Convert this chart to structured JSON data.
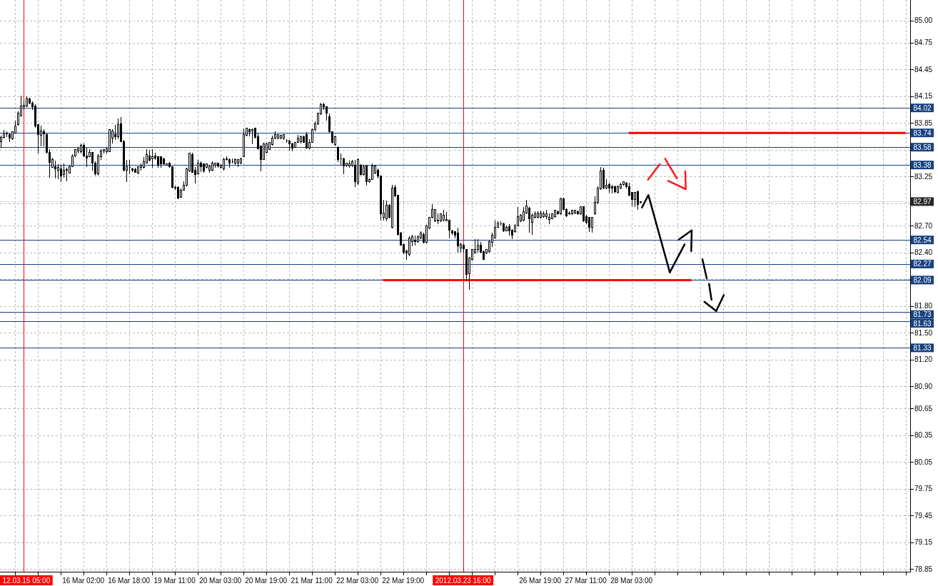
{
  "chart_data": {
    "type": "candlestick",
    "color": "#000000",
    "categories": [
      null,
      null,
      null,
      null,
      null,
      null,
      null,
      null,
      "12.03.15 05:00",
      null,
      null,
      null,
      null,
      null,
      null,
      null,
      null,
      null,
      null,
      null,
      null,
      null,
      null,
      null,
      null,
      null,
      null,
      null,
      null,
      "16 Mar 02:00",
      null,
      null,
      null,
      null,
      null,
      null,
      null,
      null,
      null,
      null,
      null,
      null,
      null,
      null,
      null,
      "16 Mar 18:00",
      null,
      null,
      null,
      null,
      null,
      null,
      null,
      null,
      null,
      null,
      null,
      null,
      null,
      null,
      null,
      "19 Mar 11:00",
      null,
      null,
      null,
      null,
      null,
      null,
      null,
      null,
      null,
      null,
      null,
      null,
      null,
      null,
      null,
      "20 Mar 03:00",
      null,
      null,
      null,
      null,
      null,
      null,
      null,
      null,
      null,
      null,
      null,
      null,
      null,
      null,
      null,
      "20 Mar 19:00",
      null,
      null,
      null,
      null,
      null,
      null,
      null,
      null,
      null,
      null,
      null,
      null,
      null,
      null,
      null,
      "21 Mar 11:00",
      null,
      null,
      null,
      null,
      null,
      null,
      null,
      null,
      null,
      null,
      null,
      null,
      null,
      null,
      null,
      "22 Mar 03:00",
      null,
      null,
      null,
      null,
      null,
      null,
      null,
      null,
      null,
      null,
      null,
      null,
      null,
      null,
      null,
      "22 Mar 19:00",
      null,
      null,
      null,
      null,
      null,
      null,
      null,
      null,
      null,
      null,
      null,
      null,
      null,
      null,
      null,
      null,
      null,
      null,
      null,
      null,
      "2012.03.23 16:00",
      null,
      null,
      null,
      null,
      null,
      null,
      null,
      null,
      null,
      null,
      null,
      null,
      null,
      null,
      null,
      null,
      null,
      null,
      null,
      null,
      null,
      null,
      null,
      null,
      null,
      null,
      "26 Mar 19:00",
      null,
      null,
      null,
      null,
      null,
      null,
      null,
      null,
      null,
      null,
      null,
      null,
      null,
      null,
      null,
      "27 Mar 11:00",
      null,
      null,
      null,
      null,
      null,
      null,
      null,
      null,
      null,
      null,
      null,
      null,
      null,
      null,
      null,
      "28 Mar 03:00",
      null,
      null,
      null,
      null,
      null,
      null,
      null,
      null,
      null,
      null,
      null,
      null,
      null,
      null,
      null,
      null,
      null,
      null,
      null,
      null,
      null,
      null,
      null,
      null,
      null,
      null,
      null,
      null,
      null,
      null,
      null,
      null,
      null,
      null,
      null,
      null,
      null,
      null,
      null,
      null,
      null,
      null,
      null,
      null,
      null,
      null,
      null,
      null,
      null,
      null,
      null,
      null,
      null,
      null,
      null,
      null,
      null,
      null,
      null,
      null,
      null,
      null,
      null,
      null,
      null,
      null,
      null,
      null,
      null,
      null,
      null,
      null,
      null,
      null,
      null,
      null,
      null,
      null,
      null,
      null,
      null,
      null,
      null,
      null,
      null,
      null,
      null,
      null,
      null,
      null,
      null,
      null,
      null,
      null,
      null,
      null,
      null
    ],
    "ohlc": [
      [
        83.64,
        83.71,
        83.57,
        83.69
      ],
      [
        83.69,
        83.77,
        83.68,
        83.74
      ],
      [
        83.74,
        83.76,
        83.69,
        83.73
      ],
      [
        83.72,
        83.73,
        83.64,
        83.68
      ],
      [
        83.67,
        83.76,
        83.66,
        83.75
      ],
      [
        83.74,
        83.88,
        83.73,
        83.82
      ],
      [
        83.83,
        83.98,
        83.82,
        83.96
      ],
      [
        83.93,
        84.16,
        83.93,
        84.04
      ],
      [
        84.03,
        84.1,
        84.0,
        84.05
      ],
      [
        84.04,
        84.15,
        84.03,
        84.12
      ],
      [
        84.12,
        84.13,
        84.06,
        84.07
      ],
      [
        84.07,
        84.09,
        84.0,
        84.03
      ],
      [
        84.04,
        84.06,
        83.8,
        83.82
      ],
      [
        83.83,
        83.84,
        83.51,
        83.72
      ],
      [
        83.71,
        83.82,
        83.59,
        83.76
      ],
      [
        83.75,
        83.78,
        83.59,
        83.73
      ],
      [
        83.72,
        83.74,
        83.51,
        83.52
      ],
      [
        83.52,
        83.56,
        83.24,
        83.41
      ],
      [
        83.35,
        83.46,
        83.35,
        83.44
      ],
      [
        83.36,
        83.43,
        83.23,
        83.34
      ],
      [
        83.32,
        83.39,
        83.22,
        83.35
      ],
      [
        83.34,
        83.38,
        83.19,
        83.26
      ],
      [
        83.27,
        83.4,
        83.24,
        83.32
      ],
      [
        83.32,
        83.35,
        83.2,
        83.33
      ],
      [
        83.29,
        83.38,
        83.29,
        83.36
      ],
      [
        83.36,
        83.5,
        83.36,
        83.48
      ],
      [
        83.48,
        83.56,
        83.47,
        83.55
      ],
      [
        83.54,
        83.58,
        83.51,
        83.56
      ],
      [
        83.53,
        83.62,
        83.51,
        83.6
      ],
      [
        83.6,
        83.62,
        83.47,
        83.48
      ],
      [
        83.48,
        83.57,
        83.36,
        83.46
      ],
      [
        83.47,
        83.56,
        83.47,
        83.52
      ],
      [
        83.52,
        83.52,
        83.32,
        83.4
      ],
      [
        83.4,
        83.42,
        83.26,
        83.28
      ],
      [
        83.28,
        83.5,
        83.26,
        83.48
      ],
      [
        83.47,
        83.56,
        83.44,
        83.54
      ],
      [
        83.54,
        83.56,
        83.51,
        83.55
      ],
      [
        83.53,
        83.57,
        83.51,
        83.56
      ],
      [
        83.53,
        83.78,
        83.53,
        83.78
      ],
      [
        83.68,
        83.78,
        83.62,
        83.76
      ],
      [
        83.72,
        83.83,
        83.66,
        83.7
      ],
      [
        83.7,
        83.9,
        83.67,
        83.83
      ],
      [
        83.84,
        83.92,
        83.64,
        83.64
      ],
      [
        83.64,
        83.66,
        83.31,
        83.32
      ],
      [
        83.32,
        83.44,
        83.19,
        83.36
      ],
      [
        83.35,
        83.44,
        83.28,
        83.35
      ],
      [
        83.34,
        83.35,
        83.3,
        83.32
      ],
      [
        83.33,
        83.35,
        83.29,
        83.3
      ],
      [
        83.29,
        83.36,
        83.28,
        83.36
      ],
      [
        83.35,
        83.4,
        83.32,
        83.38
      ],
      [
        83.35,
        83.47,
        83.34,
        83.42
      ],
      [
        83.4,
        83.56,
        83.4,
        83.5
      ],
      [
        83.48,
        83.55,
        83.42,
        83.43
      ],
      [
        83.45,
        83.56,
        83.35,
        83.47
      ],
      [
        83.48,
        83.52,
        83.44,
        83.46
      ],
      [
        83.47,
        83.48,
        83.35,
        83.38
      ],
      [
        83.47,
        83.48,
        83.35,
        83.39
      ],
      [
        83.45,
        83.46,
        83.38,
        83.39
      ],
      [
        83.38,
        83.4,
        83.37,
        83.39
      ],
      [
        83.4,
        83.41,
        83.35,
        83.36
      ],
      [
        83.36,
        83.36,
        83.12,
        83.13
      ],
      [
        83.13,
        83.15,
        83.1,
        83.12
      ],
      [
        83.13,
        83.14,
        83.0,
        83.01
      ],
      [
        83.02,
        83.12,
        83.02,
        83.1
      ],
      [
        83.1,
        83.2,
        83.1,
        83.15
      ],
      [
        83.15,
        83.35,
        83.14,
        83.34
      ],
      [
        83.31,
        83.52,
        83.3,
        83.51
      ],
      [
        83.5,
        83.52,
        83.3,
        83.3
      ],
      [
        83.32,
        83.36,
        83.17,
        83.27
      ],
      [
        83.28,
        83.44,
        83.27,
        83.4
      ],
      [
        83.4,
        83.42,
        83.3,
        83.36
      ],
      [
        83.39,
        83.4,
        83.29,
        83.31
      ],
      [
        83.35,
        83.4,
        83.34,
        83.39
      ],
      [
        83.32,
        83.38,
        83.29,
        83.36
      ],
      [
        83.32,
        83.42,
        83.31,
        83.4
      ],
      [
        83.38,
        83.4,
        83.35,
        83.4
      ],
      [
        83.4,
        83.4,
        83.35,
        83.37
      ],
      [
        83.35,
        83.39,
        83.34,
        83.38
      ],
      [
        83.34,
        83.46,
        83.32,
        83.44
      ],
      [
        83.44,
        83.48,
        83.43,
        83.45
      ],
      [
        83.44,
        83.45,
        83.35,
        83.4
      ],
      [
        83.42,
        83.45,
        83.4,
        83.42
      ],
      [
        83.4,
        83.45,
        83.38,
        83.44
      ],
      [
        83.4,
        83.44,
        83.36,
        83.44
      ],
      [
        83.4,
        83.46,
        83.39,
        83.45
      ],
      [
        83.47,
        83.79,
        83.47,
        83.72
      ],
      [
        83.71,
        83.8,
        83.7,
        83.79
      ],
      [
        83.78,
        83.79,
        83.7,
        83.75
      ],
      [
        83.76,
        83.79,
        83.61,
        83.78
      ],
      [
        83.79,
        83.8,
        83.68,
        83.69
      ],
      [
        83.7,
        83.74,
        83.56,
        83.56
      ],
      [
        83.59,
        83.6,
        83.31,
        83.44
      ],
      [
        83.44,
        83.63,
        83.44,
        83.62
      ],
      [
        83.52,
        83.63,
        83.51,
        83.62
      ],
      [
        83.55,
        83.64,
        83.55,
        83.63
      ],
      [
        83.61,
        83.71,
        83.6,
        83.68
      ],
      [
        83.68,
        83.76,
        83.67,
        83.72
      ],
      [
        83.68,
        83.72,
        83.67,
        83.72
      ],
      [
        83.68,
        83.72,
        83.67,
        83.71
      ],
      [
        83.68,
        83.72,
        83.66,
        83.72
      ],
      [
        83.65,
        83.67,
        83.63,
        83.65
      ],
      [
        83.65,
        83.66,
        83.54,
        83.62
      ],
      [
        83.62,
        83.63,
        83.53,
        83.57
      ],
      [
        83.58,
        83.64,
        83.57,
        83.63
      ],
      [
        83.63,
        83.72,
        83.63,
        83.68
      ],
      [
        83.64,
        83.71,
        83.62,
        83.7
      ],
      [
        83.7,
        83.71,
        83.63,
        83.63
      ],
      [
        83.72,
        83.75,
        83.57,
        83.57
      ],
      [
        83.57,
        83.67,
        83.56,
        83.63
      ],
      [
        83.63,
        83.79,
        83.63,
        83.78
      ],
      [
        83.78,
        83.87,
        83.76,
        83.84
      ],
      [
        83.84,
        83.96,
        83.83,
        83.96
      ],
      [
        83.95,
        84.08,
        83.94,
        84.06
      ],
      [
        84.06,
        84.08,
        84.0,
        84.03
      ],
      [
        84.03,
        84.04,
        83.88,
        83.96
      ],
      [
        83.92,
        83.96,
        83.74,
        83.75
      ],
      [
        83.75,
        83.76,
        83.62,
        83.63
      ],
      [
        83.61,
        83.71,
        83.6,
        83.7
      ],
      [
        83.58,
        83.59,
        83.41,
        83.44
      ],
      [
        83.45,
        83.51,
        83.38,
        83.45
      ],
      [
        83.45,
        83.46,
        83.28,
        83.37
      ],
      [
        83.38,
        83.4,
        83.36,
        83.4
      ],
      [
        83.37,
        83.43,
        83.35,
        83.39
      ],
      [
        83.38,
        83.44,
        83.36,
        83.42
      ],
      [
        83.38,
        83.44,
        83.13,
        83.19
      ],
      [
        83.18,
        83.45,
        83.16,
        83.44
      ],
      [
        83.38,
        83.39,
        83.26,
        83.27
      ],
      [
        83.27,
        83.38,
        83.26,
        83.36
      ],
      [
        83.37,
        83.38,
        83.15,
        83.19
      ],
      [
        83.19,
        83.23,
        83.18,
        83.22
      ],
      [
        83.22,
        83.4,
        83.21,
        83.37
      ],
      [
        83.29,
        83.38,
        83.28,
        83.37
      ],
      [
        83.32,
        83.34,
        83.23,
        83.26
      ],
      [
        83.26,
        83.26,
        82.76,
        82.83
      ],
      [
        82.79,
        82.99,
        82.76,
        82.84
      ],
      [
        82.78,
        82.98,
        82.75,
        82.93
      ],
      [
        82.93,
        82.94,
        82.78,
        82.79
      ],
      [
        82.68,
        83.16,
        82.67,
        83.12
      ],
      [
        83.13,
        83.16,
        83.02,
        83.03
      ],
      [
        83.04,
        83.04,
        82.59,
        82.6
      ],
      [
        82.62,
        82.63,
        82.48,
        82.48
      ],
      [
        82.49,
        82.5,
        82.38,
        82.4
      ],
      [
        82.42,
        82.43,
        82.32,
        82.39
      ],
      [
        82.38,
        82.58,
        82.36,
        82.56
      ],
      [
        82.52,
        82.6,
        82.47,
        82.58
      ],
      [
        82.54,
        82.59,
        82.48,
        82.52
      ],
      [
        82.52,
        82.59,
        82.51,
        82.58
      ],
      [
        82.56,
        82.64,
        82.55,
        82.62
      ],
      [
        82.6,
        82.62,
        82.5,
        82.51
      ],
      [
        82.51,
        82.71,
        82.5,
        82.7
      ],
      [
        82.67,
        82.8,
        82.66,
        82.79
      ],
      [
        82.79,
        82.94,
        82.78,
        82.88
      ],
      [
        82.75,
        82.88,
        82.74,
        82.88
      ],
      [
        82.76,
        82.84,
        82.72,
        82.75
      ],
      [
        82.75,
        82.84,
        82.74,
        82.83
      ],
      [
        82.76,
        82.88,
        82.75,
        82.82
      ],
      [
        82.75,
        82.85,
        82.75,
        82.77
      ],
      [
        82.76,
        82.76,
        82.56,
        82.65
      ],
      [
        82.64,
        82.65,
        82.6,
        82.62
      ],
      [
        82.63,
        82.64,
        82.56,
        82.59
      ],
      [
        82.62,
        82.68,
        82.4,
        82.47
      ],
      [
        82.45,
        82.51,
        82.4,
        82.49
      ],
      [
        82.48,
        82.49,
        82.4,
        82.44
      ],
      [
        82.43,
        82.43,
        82.08,
        82.15
      ],
      [
        82.16,
        82.35,
        81.98,
        82.34
      ],
      [
        82.32,
        82.43,
        82.31,
        82.43
      ],
      [
        82.39,
        82.55,
        82.39,
        82.43
      ],
      [
        82.43,
        82.55,
        82.4,
        82.48
      ],
      [
        82.48,
        82.52,
        82.4,
        82.4
      ],
      [
        82.41,
        82.42,
        82.32,
        82.32
      ],
      [
        82.39,
        82.44,
        82.38,
        82.43
      ],
      [
        82.41,
        82.54,
        82.4,
        82.52
      ],
      [
        82.51,
        82.62,
        82.46,
        82.59
      ],
      [
        82.56,
        82.76,
        82.56,
        82.68
      ],
      [
        82.68,
        82.75,
        82.68,
        82.73
      ],
      [
        82.72,
        82.75,
        82.7,
        82.72
      ],
      [
        82.72,
        82.73,
        82.63,
        82.64
      ],
      [
        82.64,
        82.7,
        82.64,
        82.68
      ],
      [
        82.69,
        82.72,
        82.59,
        82.64
      ],
      [
        82.65,
        82.66,
        82.55,
        82.59
      ],
      [
        82.63,
        82.72,
        82.62,
        82.7
      ],
      [
        82.7,
        82.91,
        82.7,
        82.8
      ],
      [
        82.75,
        82.83,
        82.74,
        82.82
      ],
      [
        82.76,
        82.91,
        82.75,
        82.86
      ],
      [
        82.84,
        82.99,
        82.83,
        82.92
      ],
      [
        82.9,
        82.91,
        82.62,
        82.78
      ],
      [
        82.74,
        82.84,
        82.6,
        82.82
      ],
      [
        82.79,
        82.86,
        82.78,
        82.83
      ],
      [
        82.79,
        82.86,
        82.78,
        82.84
      ],
      [
        82.79,
        82.87,
        82.78,
        82.84
      ],
      [
        82.8,
        82.86,
        82.79,
        82.83
      ],
      [
        82.8,
        82.88,
        82.77,
        82.83
      ],
      [
        82.77,
        82.84,
        82.72,
        82.79
      ],
      [
        82.78,
        82.84,
        82.78,
        82.83
      ],
      [
        82.8,
        82.88,
        82.79,
        82.87
      ],
      [
        82.86,
        82.87,
        82.82,
        82.83
      ],
      [
        82.83,
        83.01,
        82.82,
        83.0
      ],
      [
        83.0,
        83.01,
        82.88,
        82.88
      ],
      [
        82.88,
        82.89,
        82.8,
        82.81
      ],
      [
        82.84,
        82.86,
        82.82,
        82.83
      ],
      [
        82.83,
        82.88,
        82.82,
        82.87
      ],
      [
        82.84,
        82.88,
        82.83,
        82.87
      ],
      [
        82.86,
        82.87,
        82.82,
        82.83
      ],
      [
        82.83,
        82.92,
        82.82,
        82.91
      ],
      [
        82.91,
        82.92,
        82.74,
        82.75
      ],
      [
        82.8,
        82.82,
        82.72,
        82.74
      ],
      [
        82.79,
        82.8,
        82.63,
        82.68
      ],
      [
        82.68,
        82.8,
        82.62,
        82.79
      ],
      [
        82.83,
        83.03,
        82.82,
        82.96
      ],
      [
        82.96,
        83.14,
        82.94,
        83.12
      ],
      [
        83.11,
        83.36,
        83.1,
        83.31
      ],
      [
        83.32,
        83.35,
        83.11,
        83.12
      ],
      [
        83.12,
        83.22,
        83.11,
        83.15
      ],
      [
        83.16,
        83.18,
        83.07,
        83.12
      ],
      [
        83.14,
        83.16,
        83.06,
        83.12
      ],
      [
        83.14,
        83.15,
        83.06,
        83.08
      ],
      [
        83.07,
        83.15,
        83.06,
        83.14
      ],
      [
        83.12,
        83.18,
        83.11,
        83.16
      ],
      [
        83.16,
        83.2,
        83.15,
        83.19
      ],
      [
        83.18,
        83.19,
        83.12,
        83.14
      ],
      [
        83.14,
        83.18,
        83.03,
        83.04
      ],
      [
        83.07,
        83.08,
        82.92,
        82.99
      ],
      [
        82.99,
        83.08,
        82.91,
        83.07
      ],
      [
        83.08,
        83.09,
        82.88,
        82.94
      ],
      [
        82.96,
        82.97,
        82.95,
        82.97
      ],
      null,
      null,
      null,
      null,
      null,
      null,
      null,
      null,
      null,
      null,
      null,
      null,
      null,
      null,
      null,
      null,
      null,
      null,
      null,
      null,
      null,
      null,
      null,
      null,
      null,
      null,
      null,
      null,
      null,
      null,
      null,
      null,
      null,
      null,
      null,
      null,
      null,
      null,
      null,
      null,
      null,
      null,
      null,
      null,
      null,
      null,
      null,
      null,
      null,
      null,
      null,
      null,
      null,
      null,
      null,
      null,
      null,
      null,
      null,
      null,
      null,
      null,
      null,
      null,
      null,
      null,
      null,
      null,
      null,
      null,
      null,
      null,
      null,
      null,
      null,
      null,
      null,
      null,
      null,
      null,
      null,
      null,
      null,
      null,
      null,
      null,
      null,
      null,
      null,
      null,
      null,
      null,
      null,
      null
    ],
    "ylim": [
      78.82,
      85.23
    ],
    "yticks": [
      {
        "value": 85,
        "label": "85.00"
      },
      84.75,
      84.45,
      84.15,
      83.85,
      {
        "value": 83.55,
        "label": null
      },
      83.25,
      {
        "value": 82.95,
        "label": null
      },
      {
        "value": 82.7,
        "label": "82.70"
      },
      {
        "value": 82.4,
        "label": "82.40"
      },
      {
        "value": 82.1,
        "label": null
      },
      {
        "value": 81.8,
        "label": "81.80"
      },
      {
        "value": 81.5,
        "label": "81.50"
      },
      {
        "value": 81.2,
        "label": "81.20"
      },
      {
        "value": 80.9,
        "label": "80.90"
      },
      80.65,
      80.35,
      80.05,
      79.75,
      79.45,
      79.15,
      78.85
    ],
    "grid": true,
    "ref_lines": [
      {
        "axis": "y",
        "value": 84.02,
        "label": "84.02",
        "color": "#17417f"
      },
      {
        "axis": "y",
        "value": 83.74,
        "label": "83.74",
        "color": "#17417f"
      },
      {
        "axis": "y",
        "value": 83.58,
        "label": "83.58",
        "color": "#17417f"
      },
      {
        "axis": "y",
        "value": 83.38,
        "label": "83.38",
        "color": "#17417f"
      },
      {
        "axis": "y",
        "value": 82.97,
        "label": "82.97",
        "color": "#a0a0a0",
        "line_style": "dotted"
      },
      {
        "axis": "y",
        "value": 82.54,
        "label": "82.54",
        "color": "#17417f"
      },
      {
        "axis": "y",
        "value": 82.27,
        "label": "82.27",
        "color": "#17417f"
      },
      {
        "axis": "y",
        "value": 82.09,
        "label": "82.09",
        "color": "#17417f"
      },
      {
        "axis": "y",
        "value": 81.73,
        "label": "81.73",
        "color": "#17417f"
      },
      {
        "axis": "y",
        "value": 81.63,
        "label": "81.63",
        "color": "#17417f"
      },
      {
        "axis": "y",
        "value": 81.33,
        "label": "81.33",
        "color": "#17417f"
      },
      {
        "axis": "x",
        "value": "12.03.15 05:00",
        "color": "#ff0000"
      },
      {
        "axis": "x",
        "value": "2012.03.23 16:00",
        "color": "#ff0000"
      }
    ],
    "series": [
      {
        "type": "line",
        "color": "#ff0000",
        "values": [
          null,
          null,
          null,
          null,
          null,
          null,
          null,
          null,
          null,
          null,
          null,
          null,
          null,
          null,
          null,
          null,
          null,
          null,
          null,
          null,
          null,
          null,
          null,
          null,
          null,
          null,
          null,
          null,
          null,
          null,
          null,
          null,
          null,
          null,
          null,
          null,
          null,
          null,
          null,
          null,
          null,
          null,
          null,
          null,
          null,
          null,
          null,
          null,
          null,
          null,
          null,
          null,
          null,
          null,
          null,
          null,
          null,
          null,
          null,
          null,
          null,
          null,
          null,
          null,
          null,
          null,
          null,
          null,
          null,
          null,
          null,
          null,
          null,
          null,
          null,
          null,
          null,
          null,
          null,
          null,
          null,
          null,
          null,
          null,
          null,
          null,
          null,
          null,
          null,
          null,
          null,
          null,
          null,
          null,
          null,
          null,
          null,
          null,
          null,
          null,
          null,
          null,
          null,
          null,
          null,
          null,
          null,
          null,
          null,
          null,
          null,
          null,
          null,
          null,
          null,
          null,
          null,
          null,
          null,
          null,
          null,
          null,
          null,
          null,
          null,
          null,
          null,
          null,
          null,
          null,
          null,
          null,
          null,
          null,
          null,
          null,
          null,
          null,
          null,
          null,
          null,
          null,
          null,
          null,
          null,
          null,
          null,
          null,
          null,
          null,
          null,
          null,
          null,
          null,
          null,
          null,
          null,
          null,
          null,
          null,
          null,
          null,
          null,
          null,
          null,
          null,
          null,
          null,
          null,
          null,
          null,
          null,
          null,
          null,
          null,
          null,
          null,
          null,
          null,
          null,
          null,
          null,
          null,
          null,
          null,
          null,
          null,
          null,
          null,
          null,
          null,
          null,
          null,
          null,
          null,
          null,
          null,
          null,
          null,
          null,
          null,
          null,
          null,
          null,
          null,
          null,
          null,
          null,
          null,
          null,
          null,
          null,
          null,
          null,
          null,
          null,
          null,
          null,
          null,
          null,
          83.74,
          83.74,
          83.74,
          83.74,
          83.74,
          83.74,
          83.74,
          83.74,
          83.74,
          83.74,
          83.74,
          83.74,
          83.74,
          83.74,
          83.74,
          83.74,
          83.74,
          83.74,
          83.74,
          83.74,
          83.74,
          83.74,
          83.74,
          83.74,
          83.74,
          83.74,
          83.74,
          83.74,
          83.74,
          83.74,
          83.74,
          83.74,
          83.74,
          83.74,
          83.74,
          83.74,
          83.74,
          83.74,
          83.74,
          83.74,
          83.74,
          83.74,
          83.74,
          83.74,
          83.74,
          83.74,
          83.74,
          83.74,
          83.74,
          83.74,
          83.74,
          83.74,
          83.74,
          83.74,
          83.74,
          83.74,
          83.74,
          83.74,
          83.74,
          83.74,
          83.74,
          83.74,
          83.74,
          83.74,
          83.74,
          83.74,
          83.74,
          83.74,
          83.74,
          83.74,
          83.74,
          83.74,
          83.74,
          83.74,
          83.74,
          83.74,
          83.74,
          83.74,
          83.74,
          83.74,
          83.74,
          83.74,
          83.74,
          83.74,
          83.74,
          83.74,
          83.74,
          83.74,
          83.74,
          83.74,
          83.74,
          83.74,
          83.74,
          83.74,
          83.74,
          83.74,
          83.74,
          83.74,
          null
        ]
      },
      {
        "type": "line",
        "color": "#ff0000",
        "values": [
          null,
          null,
          null,
          null,
          null,
          null,
          null,
          null,
          null,
          null,
          null,
          null,
          null,
          null,
          null,
          null,
          null,
          null,
          null,
          null,
          null,
          null,
          null,
          null,
          null,
          null,
          null,
          null,
          null,
          null,
          null,
          null,
          null,
          null,
          null,
          null,
          null,
          null,
          null,
          null,
          null,
          null,
          null,
          null,
          null,
          null,
          null,
          null,
          null,
          null,
          null,
          null,
          null,
          null,
          null,
          null,
          null,
          null,
          null,
          null,
          null,
          null,
          null,
          null,
          null,
          null,
          null,
          null,
          null,
          null,
          null,
          null,
          null,
          null,
          null,
          null,
          null,
          null,
          null,
          null,
          null,
          null,
          null,
          null,
          null,
          null,
          null,
          null,
          null,
          null,
          null,
          null,
          null,
          null,
          null,
          null,
          null,
          null,
          null,
          null,
          null,
          null,
          null,
          null,
          null,
          null,
          null,
          null,
          null,
          null,
          null,
          null,
          null,
          null,
          null,
          null,
          null,
          null,
          null,
          null,
          null,
          null,
          null,
          null,
          null,
          null,
          null,
          null,
          null,
          null,
          null,
          null,
          null,
          null,
          82.09,
          82.09,
          82.09,
          82.09,
          82.09,
          82.09,
          82.09,
          82.09,
          82.09,
          82.09,
          82.09,
          82.09,
          82.09,
          82.09,
          82.09,
          82.09,
          82.09,
          82.09,
          82.09,
          82.09,
          82.09,
          82.09,
          82.09,
          82.09,
          82.09,
          82.09,
          82.09,
          82.09,
          82.09,
          82.09,
          82.09,
          82.09,
          82.09,
          82.09,
          82.09,
          82.09,
          82.09,
          82.09,
          82.09,
          82.09,
          82.09,
          82.09,
          82.09,
          82.09,
          82.09,
          82.09,
          82.09,
          82.09,
          82.09,
          82.09,
          82.09,
          82.09,
          82.09,
          82.09,
          82.09,
          82.09,
          82.09,
          82.09,
          82.09,
          82.09,
          82.09,
          82.09,
          82.09,
          82.09,
          82.09,
          82.09,
          82.09,
          82.09,
          82.09,
          82.09,
          82.09,
          82.09,
          82.09,
          82.09,
          82.09,
          82.09,
          82.09,
          82.09,
          82.09,
          82.09,
          82.09,
          82.09,
          82.09,
          82.09,
          82.09,
          82.09,
          82.09,
          82.09,
          82.09,
          82.09,
          82.09,
          82.09,
          82.09,
          82.09,
          82.09,
          82.09,
          82.09,
          82.09,
          82.09,
          82.09,
          82.09,
          82.09,
          82.09,
          82.09,
          82.09,
          82.09,
          82.09,
          82.09,
          82.09,
          null,
          null,
          null,
          null,
          null,
          null,
          null,
          null,
          null,
          null,
          null,
          null,
          null,
          null,
          null,
          null,
          null,
          null,
          null,
          null,
          null,
          null,
          null,
          null,
          null,
          null,
          null,
          null,
          null,
          null,
          null,
          null,
          null,
          null,
          null,
          null,
          null,
          null,
          null,
          null,
          null,
          null,
          null,
          null,
          null,
          null,
          null,
          null,
          null,
          null,
          null,
          null,
          null,
          null,
          null,
          null,
          null,
          null,
          null,
          null,
          null,
          null,
          null,
          null,
          null,
          null,
          null,
          null,
          null,
          null,
          null,
          null,
          null,
          null,
          null,
          null
        ]
      }
    ]
  }
}
